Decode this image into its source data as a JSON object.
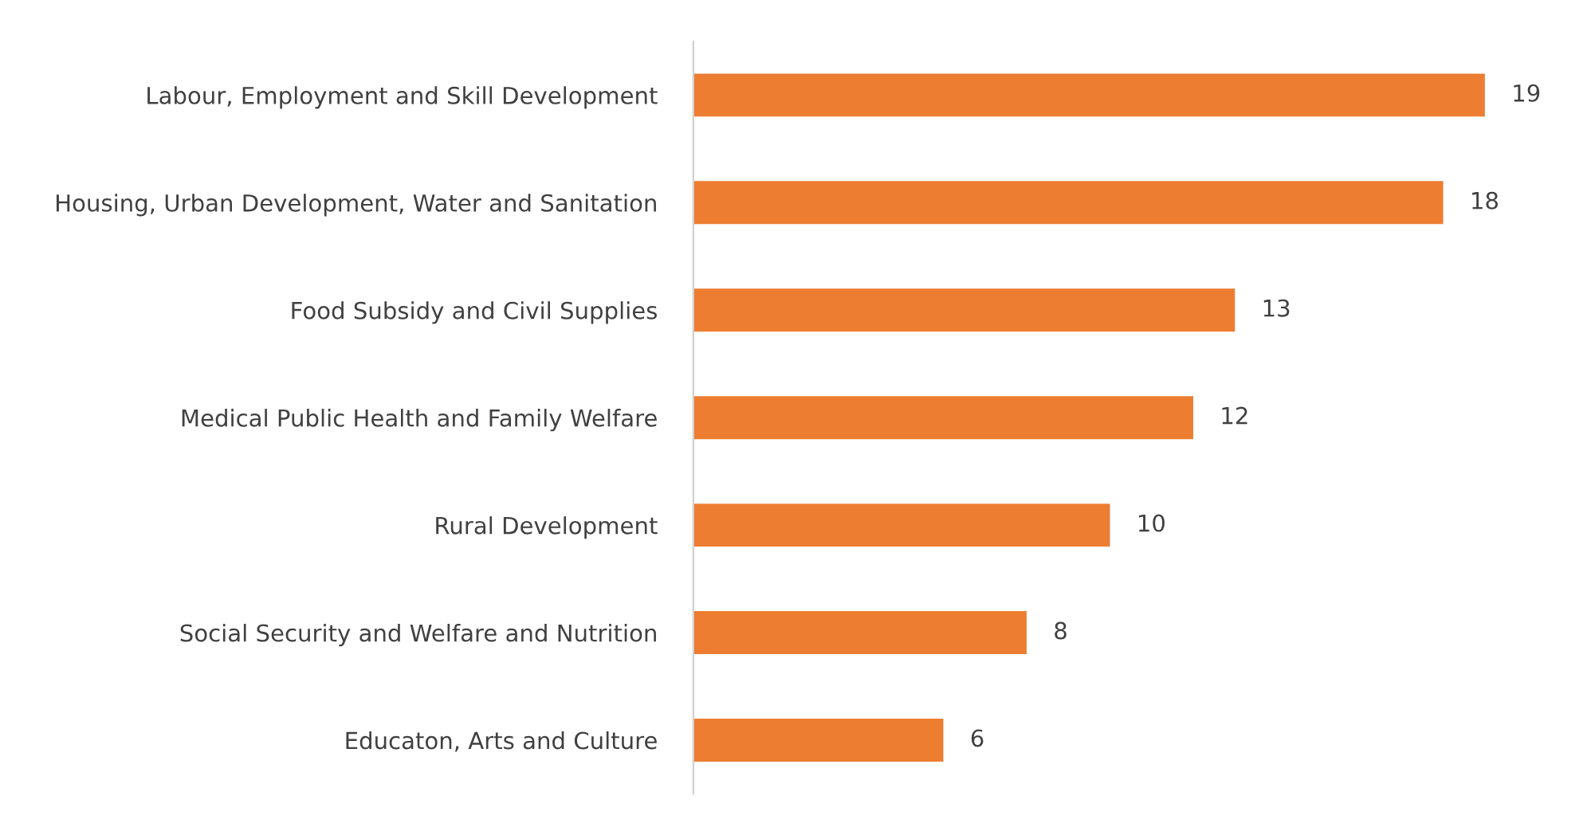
{
  "chart_data": {
    "type": "bar",
    "orientation": "horizontal",
    "categories": [
      "Labour, Employment and Skill Development",
      "Housing, Urban Development, Water and Sanitation",
      "Food Subsidy and Civil Supplies",
      "Medical Public Health and Family Welfare",
      "Rural Development",
      "Social Security and Welfare and Nutrition",
      "Educaton, Arts and Culture"
    ],
    "values": [
      19,
      18,
      13,
      12,
      10,
      8,
      6
    ],
    "color": "#ed7d31",
    "data_labels": true,
    "grid": false,
    "legend": false
  }
}
